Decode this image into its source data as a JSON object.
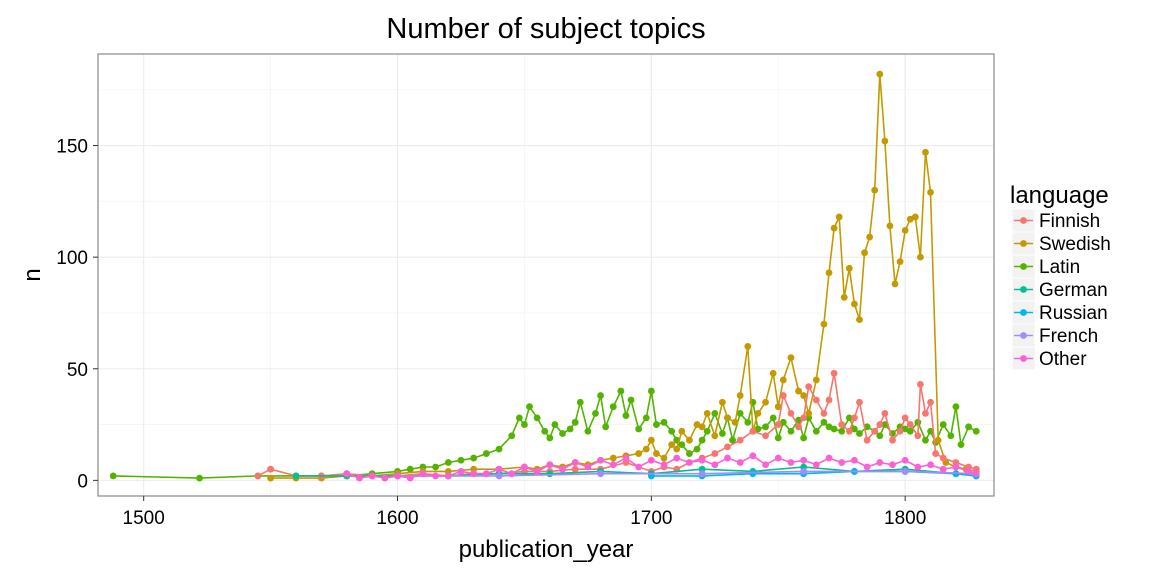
{
  "chart_data": {
    "type": "line",
    "title": "Number of subject topics",
    "xlabel": "publication_year",
    "ylabel": "n",
    "xlim": [
      1482,
      1835
    ],
    "ylim": [
      -7,
      191
    ],
    "x_ticks": [
      1500,
      1600,
      1700,
      1800
    ],
    "y_ticks": [
      0,
      50,
      100,
      150
    ],
    "grid": true,
    "markers": true,
    "legend": {
      "title": "language",
      "position": "right"
    },
    "series": [
      {
        "name": "Latin",
        "color": "#53b400",
        "x": [
          1488,
          1522,
          1545,
          1560,
          1570,
          1580,
          1590,
          1600,
          1605,
          1610,
          1615,
          1620,
          1625,
          1630,
          1635,
          1640,
          1645,
          1648,
          1650,
          1652,
          1655,
          1658,
          1660,
          1662,
          1665,
          1668,
          1670,
          1672,
          1675,
          1678,
          1680,
          1682,
          1685,
          1688,
          1690,
          1692,
          1695,
          1698,
          1700,
          1702,
          1705,
          1708,
          1710,
          1712,
          1715,
          1718,
          1720,
          1722,
          1725,
          1728,
          1730,
          1732,
          1735,
          1738,
          1740,
          1742,
          1745,
          1748,
          1750,
          1752,
          1755,
          1758,
          1760,
          1762,
          1765,
          1768,
          1770,
          1772,
          1775,
          1778,
          1780,
          1782,
          1785,
          1788,
          1790,
          1792,
          1795,
          1798,
          1800,
          1802,
          1805,
          1808,
          1810,
          1812,
          1815,
          1818,
          1820,
          1822,
          1825,
          1828
        ],
        "values": [
          2,
          1,
          2,
          2,
          2,
          2,
          3,
          4,
          5,
          6,
          6,
          8,
          9,
          10,
          12,
          14,
          20,
          28,
          25,
          33,
          28,
          22,
          19,
          25,
          21,
          23,
          26,
          35,
          22,
          30,
          38,
          24,
          33,
          40,
          29,
          36,
          23,
          28,
          40,
          25,
          26,
          22,
          18,
          16,
          12,
          14,
          18,
          22,
          30,
          21,
          28,
          18,
          30,
          26,
          35,
          23,
          24,
          28,
          19,
          26,
          22,
          27,
          19,
          28,
          22,
          26,
          24,
          23,
          22,
          28,
          23,
          21,
          24,
          22,
          20,
          25,
          21,
          24,
          23,
          22,
          26,
          18,
          22,
          17,
          25,
          20,
          33,
          16,
          24,
          22
        ]
      },
      {
        "name": "Swedish",
        "color": "#c49a00",
        "x": [
          1550,
          1560,
          1570,
          1580,
          1590,
          1600,
          1610,
          1620,
          1630,
          1640,
          1650,
          1655,
          1660,
          1665,
          1670,
          1675,
          1680,
          1685,
          1690,
          1695,
          1698,
          1700,
          1702,
          1705,
          1708,
          1710,
          1712,
          1715,
          1718,
          1720,
          1722,
          1725,
          1728,
          1730,
          1733,
          1735,
          1738,
          1740,
          1742,
          1745,
          1748,
          1750,
          1752,
          1755,
          1758,
          1760,
          1762,
          1765,
          1768,
          1770,
          1772,
          1774,
          1776,
          1778,
          1780,
          1782,
          1784,
          1786,
          1788,
          1790,
          1792,
          1794,
          1796,
          1798,
          1800,
          1802,
          1804,
          1806,
          1808,
          1810,
          1813,
          1816,
          1820,
          1824,
          1828
        ],
        "values": [
          1,
          1,
          1,
          2,
          2,
          3,
          4,
          4,
          5,
          5,
          6,
          5,
          7,
          6,
          8,
          7,
          9,
          10,
          11,
          12,
          14,
          18,
          12,
          10,
          16,
          14,
          22,
          18,
          25,
          24,
          30,
          20,
          35,
          28,
          26,
          38,
          60,
          22,
          30,
          35,
          48,
          33,
          45,
          55,
          40,
          38,
          30,
          45,
          70,
          93,
          113,
          118,
          82,
          95,
          79,
          72,
          102,
          109,
          130,
          182,
          152,
          114,
          88,
          98,
          112,
          117,
          118,
          100,
          147,
          129,
          18,
          8,
          6,
          5,
          4
        ]
      },
      {
        "name": "Finnish",
        "color": "#f8766d",
        "x": [
          1545,
          1550,
          1560,
          1570,
          1580,
          1590,
          1600,
          1610,
          1620,
          1630,
          1640,
          1650,
          1660,
          1670,
          1680,
          1690,
          1700,
          1705,
          1710,
          1715,
          1720,
          1725,
          1730,
          1735,
          1740,
          1745,
          1750,
          1752,
          1755,
          1758,
          1760,
          1762,
          1765,
          1768,
          1770,
          1772,
          1775,
          1778,
          1780,
          1782,
          1785,
          1788,
          1790,
          1792,
          1795,
          1798,
          1800,
          1802,
          1805,
          1806,
          1808,
          1810,
          1812,
          1815,
          1820,
          1825,
          1828
        ],
        "values": [
          2,
          5,
          2,
          2,
          3,
          2,
          2,
          3,
          2,
          3,
          3,
          4,
          4,
          5,
          5,
          8,
          4,
          6,
          5,
          8,
          10,
          12,
          15,
          18,
          22,
          20,
          25,
          38,
          30,
          24,
          28,
          42,
          36,
          30,
          36,
          48,
          25,
          22,
          28,
          35,
          18,
          22,
          25,
          30,
          18,
          22,
          28,
          25,
          20,
          43,
          30,
          35,
          12,
          10,
          8,
          6,
          5
        ]
      },
      {
        "name": "German",
        "color": "#00c094",
        "x": [
          1560,
          1580,
          1600,
          1620,
          1640,
          1660,
          1680,
          1700,
          1720,
          1740,
          1760,
          1780,
          1800,
          1820,
          1828
        ],
        "values": [
          2,
          2,
          2,
          2,
          3,
          3,
          4,
          3,
          5,
          4,
          6,
          4,
          5,
          3,
          2
        ]
      },
      {
        "name": "Russian",
        "color": "#00b6eb",
        "x": [
          1700,
          1720,
          1740,
          1760,
          1780,
          1800,
          1820,
          1828
        ],
        "values": [
          2,
          2,
          3,
          3,
          4,
          4,
          3,
          2
        ]
      },
      {
        "name": "French",
        "color": "#a58aff",
        "x": [
          1600,
          1640,
          1680,
          1720,
          1760,
          1800,
          1828
        ],
        "values": [
          2,
          2,
          3,
          3,
          4,
          4,
          3
        ]
      },
      {
        "name": "Other",
        "color": "#fb61d7",
        "x": [
          1580,
          1585,
          1590,
          1595,
          1600,
          1605,
          1610,
          1615,
          1620,
          1625,
          1630,
          1635,
          1640,
          1645,
          1650,
          1655,
          1660,
          1665,
          1670,
          1675,
          1680,
          1685,
          1690,
          1695,
          1700,
          1705,
          1710,
          1715,
          1720,
          1725,
          1730,
          1735,
          1740,
          1745,
          1750,
          1755,
          1760,
          1765,
          1770,
          1775,
          1780,
          1785,
          1790,
          1795,
          1800,
          1805,
          1810,
          1815,
          1820,
          1825,
          1828
        ],
        "values": [
          3,
          1,
          2,
          1,
          2,
          1,
          3,
          2,
          2,
          4,
          3,
          3,
          5,
          3,
          6,
          4,
          7,
          5,
          8,
          6,
          9,
          7,
          10,
          6,
          9,
          7,
          10,
          8,
          9,
          7,
          10,
          8,
          11,
          7,
          10,
          8,
          9,
          7,
          10,
          8,
          9,
          6,
          8,
          7,
          9,
          6,
          7,
          5,
          6,
          4,
          3
        ]
      }
    ]
  }
}
